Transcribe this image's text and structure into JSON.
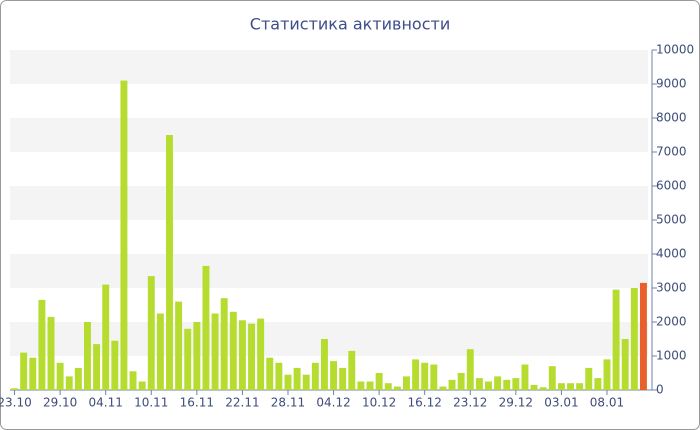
{
  "chart_data": {
    "type": "bar",
    "title": "Статистика активности",
    "categories": [
      "23.10",
      null,
      null,
      null,
      null,
      "29.10",
      null,
      null,
      null,
      null,
      "04.11",
      null,
      null,
      null,
      null,
      "10.11",
      null,
      null,
      null,
      null,
      "16.11",
      null,
      null,
      null,
      null,
      "22.11",
      null,
      null,
      null,
      null,
      "28.11",
      null,
      null,
      null,
      null,
      "04.12",
      null,
      null,
      null,
      null,
      "10.12",
      null,
      null,
      null,
      null,
      "16.12",
      null,
      null,
      null,
      null,
      "23.12",
      null,
      null,
      null,
      null,
      "29.12",
      null,
      null,
      null,
      null,
      "03.01",
      null,
      null,
      null,
      null,
      "08.01",
      null,
      null,
      null,
      null
    ],
    "values": [
      50,
      1100,
      950,
      2650,
      2150,
      800,
      400,
      650,
      2000,
      1350,
      3100,
      1450,
      9100,
      550,
      250,
      3350,
      2250,
      7500,
      2600,
      1800,
      2000,
      3650,
      2250,
      2700,
      2300,
      2050,
      1950,
      2100,
      950,
      800,
      450,
      650,
      450,
      800,
      1500,
      850,
      650,
      1150,
      250,
      250,
      500,
      200,
      100,
      400,
      900,
      800,
      750,
      100,
      300,
      500,
      1200,
      350,
      250,
      400,
      300,
      350,
      750,
      150,
      80,
      700,
      200,
      200,
      200,
      650,
      350,
      900,
      2950,
      1500,
      3000,
      3150
    ],
    "color": "#b5dc2f",
    "current_color": "#e8612c",
    "ylim": [
      0,
      10000
    ],
    "yticks": [
      0,
      1000,
      2000,
      3000,
      4000,
      5000,
      6000,
      7000,
      8000,
      9000,
      10000
    ],
    "grid": true
  }
}
